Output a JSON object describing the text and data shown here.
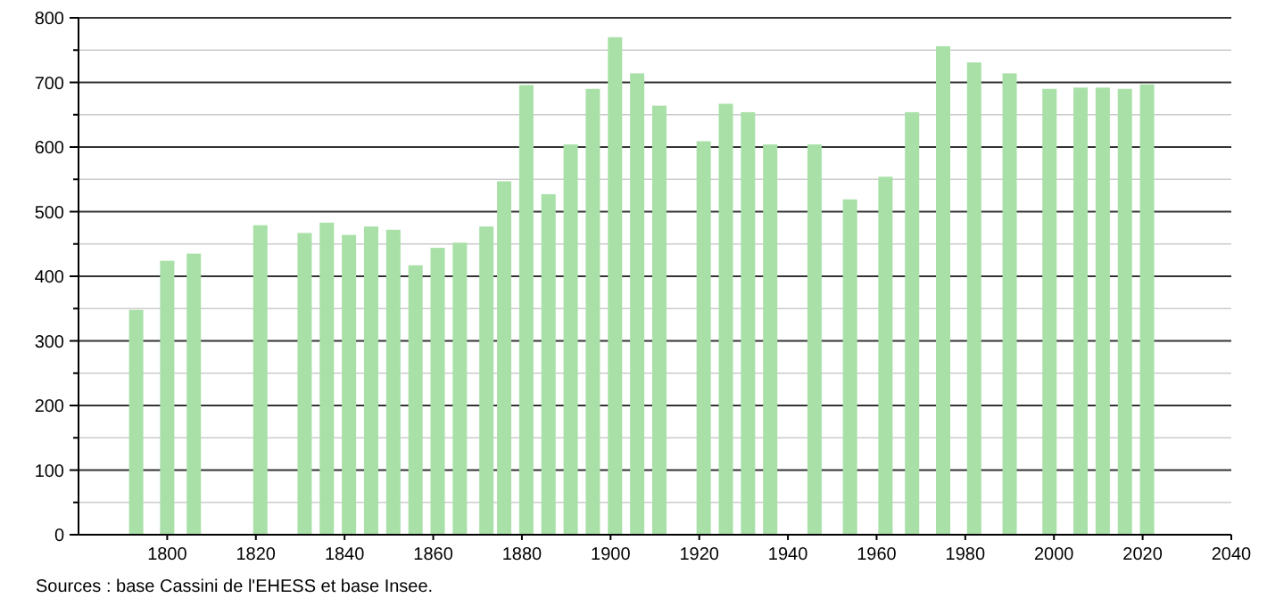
{
  "chart_data": {
    "type": "bar",
    "x": [
      1793,
      1800,
      1806,
      1821,
      1831,
      1836,
      1841,
      1846,
      1851,
      1856,
      1861,
      1866,
      1872,
      1876,
      1881,
      1886,
      1891,
      1896,
      1901,
      1906,
      1911,
      1921,
      1926,
      1931,
      1936,
      1946,
      1954,
      1962,
      1968,
      1975,
      1982,
      1990,
      1999,
      2006,
      2011,
      2016,
      2021
    ],
    "values": [
      348,
      424,
      435,
      479,
      467,
      483,
      464,
      477,
      472,
      417,
      444,
      452,
      477,
      547,
      696,
      527,
      604,
      690,
      770,
      714,
      664,
      609,
      667,
      654,
      604,
      604,
      519,
      554,
      654,
      756,
      731,
      714,
      690,
      692,
      692,
      690,
      697
    ],
    "color": "#a8e0a8",
    "xlim": [
      1780,
      2040
    ],
    "xticks": [
      1800,
      1820,
      1840,
      1860,
      1880,
      1900,
      1920,
      1940,
      1960,
      1980,
      2000,
      2020,
      2040
    ],
    "ylim": [
      0,
      800
    ],
    "yticks": [
      0,
      {
        "value": 50,
        "label": null
      },
      100,
      {
        "value": 150,
        "label": null
      },
      200,
      {
        "value": 250,
        "label": null
      },
      300,
      {
        "value": 350,
        "label": null
      },
      400,
      {
        "value": 450,
        "label": null
      },
      500,
      {
        "value": 550,
        "label": null
      },
      600,
      {
        "value": 650,
        "label": null
      },
      700,
      {
        "value": 750,
        "label": null
      },
      800
    ],
    "grid": "y",
    "annotations": [
      "Sources : base Cassini de l'EHESS et base Insee."
    ]
  }
}
